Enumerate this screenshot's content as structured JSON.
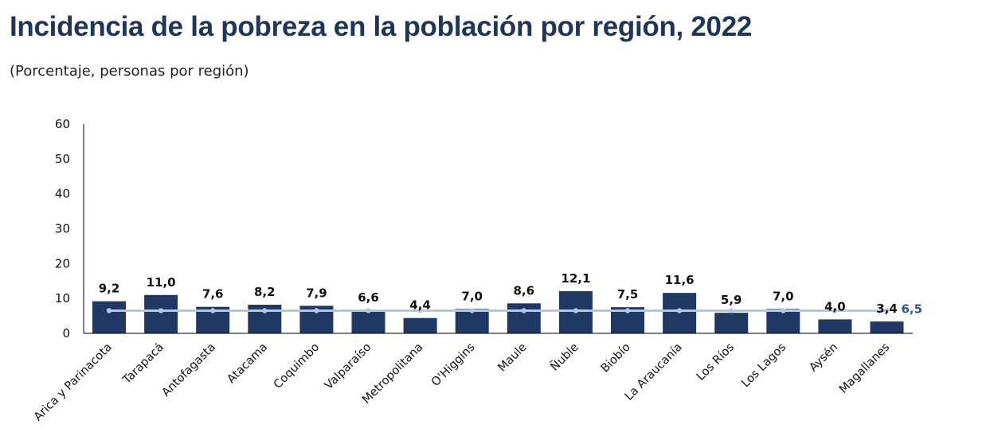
{
  "header": {
    "title": "Incidencia de la pobreza en la población por región, 2022",
    "subtitle": "(Porcentaje, personas por región)"
  },
  "chart_data": {
    "type": "bar",
    "title": "Incidencia de la pobreza en la población por región, 2022",
    "subtitle": "(Porcentaje, personas por región)",
    "xlabel": "",
    "ylabel": "",
    "ylim": [
      0,
      60
    ],
    "yticks": [
      "0",
      "10",
      "20",
      "30",
      "40",
      "50",
      "60"
    ],
    "grid": false,
    "categories": [
      "Arica y Parinacota",
      "Tarapacá",
      "Antofagasta",
      "Atacama",
      "Coquimbo",
      "Valparaíso",
      "Metropolitana",
      "O'Higgins",
      "Maule",
      "Ñuble",
      "Biobío",
      "La Araucanía",
      "Los Ríos",
      "Los Lagos",
      "Aysén",
      "Magallanes"
    ],
    "series": [
      {
        "type": "bar",
        "values": [
          9.2,
          11.0,
          7.6,
          8.2,
          7.9,
          6.6,
          4.4,
          7.0,
          8.6,
          12.1,
          7.5,
          11.6,
          5.9,
          7.0,
          4.0,
          3.4
        ],
        "labels": [
          "9,2",
          "11,0",
          "7,6",
          "8,2",
          "7,9",
          "6,6",
          "4,4",
          "7,0",
          "8,6",
          "12,1",
          "7,5",
          "11,6",
          "5,9",
          "7,0",
          "4,0",
          "3,4"
        ],
        "color": "#1f3864"
      },
      {
        "type": "line",
        "values": [
          6.5,
          6.5,
          6.5,
          6.5,
          6.5,
          6.5,
          6.5,
          6.5,
          6.5,
          6.5,
          6.5,
          6.5,
          6.5,
          6.5,
          6.5,
          6.5
        ],
        "end_label": "6,5",
        "color": "#b4c7e7",
        "label_color": "#2f5597"
      }
    ]
  }
}
